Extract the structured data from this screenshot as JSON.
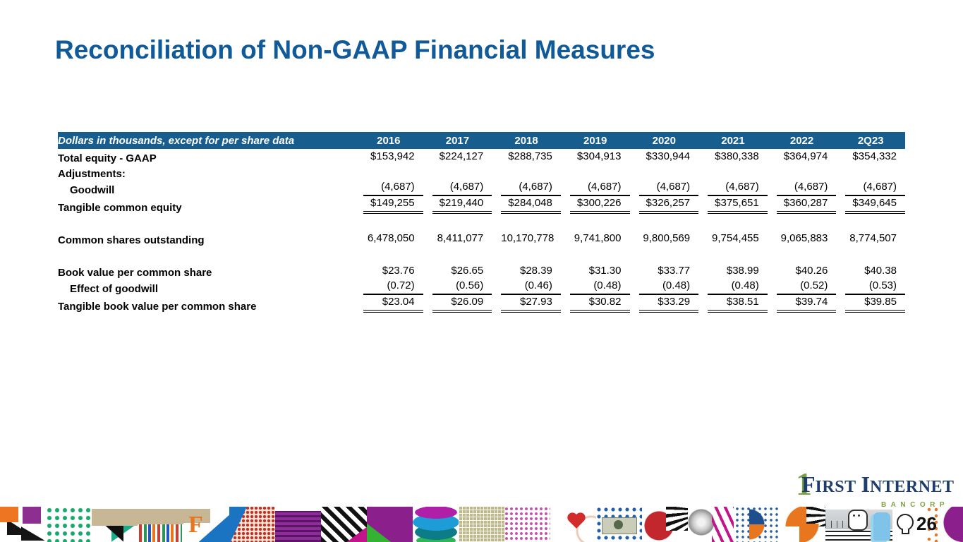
{
  "slide": {
    "title": "Reconciliation of Non-GAAP Financial Measures",
    "page_number": "26"
  },
  "colors": {
    "title_blue": "#115A99",
    "table_header_bar_blue": "#175E8E",
    "logo_navy": "#1E3C6E",
    "logo_green": "#7CA23F"
  },
  "table": {
    "header_label": "Dollars in thousands, except for per share data",
    "columns": [
      "2016",
      "2017",
      "2018",
      "2019",
      "2020",
      "2021",
      "2022",
      "2Q23"
    ],
    "rows": [
      {
        "label": "Total equity - GAAP",
        "indent": false,
        "underline": "none",
        "values": [
          "$153,942",
          "$224,127",
          "$288,735",
          "$304,913",
          "$330,944",
          "$380,338",
          "$364,974",
          "$354,332"
        ]
      },
      {
        "label": "Adjustments:",
        "indent": false,
        "underline": "none",
        "values": [
          "",
          "",
          "",
          "",
          "",
          "",
          "",
          ""
        ]
      },
      {
        "label": "Goodwill",
        "indent": true,
        "underline": "single",
        "values": [
          "(4,687)",
          "(4,687)",
          "(4,687)",
          "(4,687)",
          "(4,687)",
          "(4,687)",
          "(4,687)",
          "(4,687)"
        ]
      },
      {
        "label": "Tangible common equity",
        "indent": false,
        "underline": "double",
        "values": [
          "$149,255",
          "$219,440",
          "$284,048",
          "$300,226",
          "$326,257",
          "$375,651",
          "$360,287",
          "$349,645"
        ]
      },
      {
        "spacer": true
      },
      {
        "label": "Common shares outstanding",
        "indent": false,
        "underline": "none",
        "values": [
          "6,478,050",
          "8,411,077",
          "10,170,778",
          "9,741,800",
          "9,800,569",
          "9,754,455",
          "9,065,883",
          "8,774,507"
        ]
      },
      {
        "spacer": true
      },
      {
        "label": "Book value per common share",
        "indent": false,
        "underline": "none",
        "values": [
          "$23.76",
          "$26.65",
          "$28.39",
          "$31.30",
          "$33.77",
          "$38.99",
          "$40.26",
          "$40.38"
        ]
      },
      {
        "label": "Effect of goodwill",
        "indent": true,
        "underline": "single",
        "values": [
          "(0.72)",
          "(0.56)",
          "(0.46)",
          "(0.48)",
          "(0.48)",
          "(0.48)",
          "(0.52)",
          "(0.53)"
        ]
      },
      {
        "label": "Tangible book value per common share",
        "indent": false,
        "underline": "double",
        "values": [
          "$23.04",
          "$26.09",
          "$27.93",
          "$30.82",
          "$33.29",
          "$38.51",
          "$39.74",
          "$39.85"
        ]
      }
    ]
  },
  "logo": {
    "one": "1",
    "word1_initial": "F",
    "word1_rest": "IRST",
    "word2_initial": "I",
    "word2_rest": "NTERNET",
    "subtitle": "BANCORP"
  },
  "strip": {
    "letter_f": "F"
  }
}
